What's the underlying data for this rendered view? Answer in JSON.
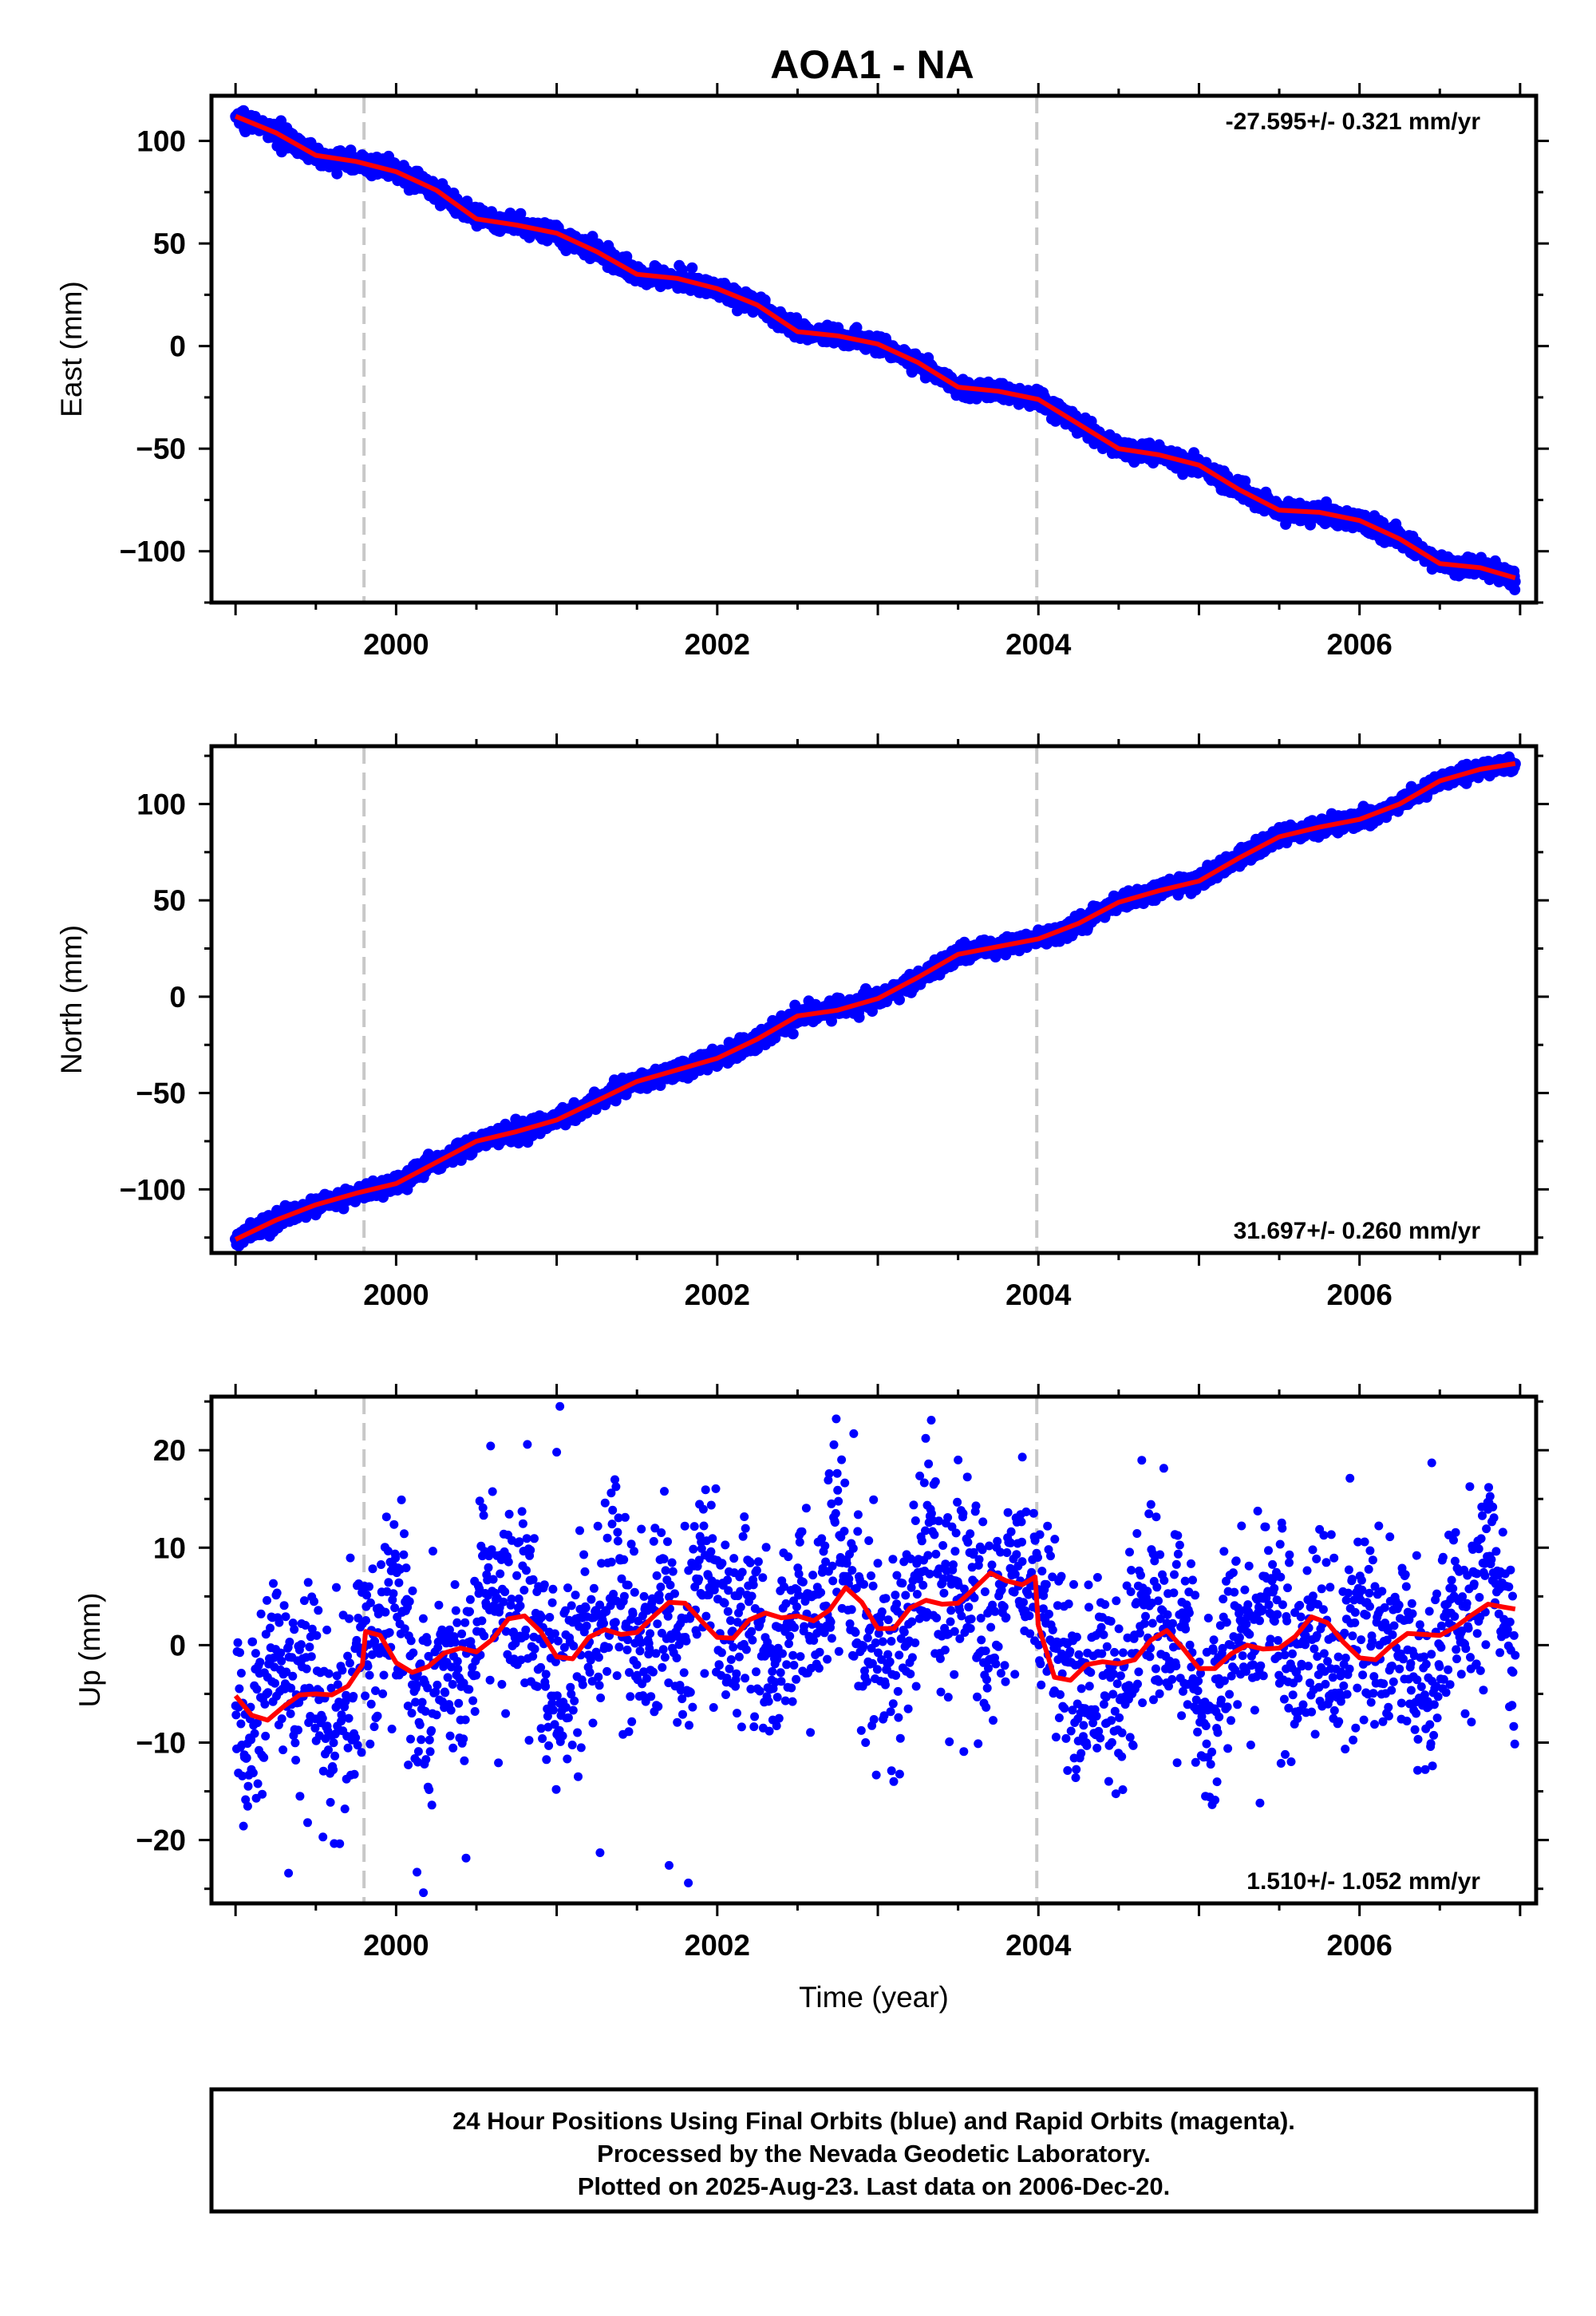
{
  "title": "AOA1 - NA",
  "footer": {
    "lines": [
      "24 Hour Positions Using Final Orbits (blue) and Rapid Orbits (magenta).",
      "Processed by the Nevada Geodetic Laboratory.",
      "Plotted on 2025-Aug-23. Last data on 2006-Dec-20."
    ]
  },
  "colors": {
    "points": "#0000ff",
    "fit": "#ff0000",
    "event_lines": "#c8c8c8",
    "frame": "#000000"
  },
  "chart_data": [
    {
      "type": "scatter",
      "component": "East",
      "ylabel": "East (mm)",
      "xlabel": "",
      "xlim": [
        1998.85,
        2007.1
      ],
      "ylim": [
        -125,
        122
      ],
      "x_ticks": [
        2000,
        2002,
        2004,
        2006
      ],
      "x_tick_labels": [
        "2000",
        "2002",
        "2004",
        "2006"
      ],
      "y_ticks": [
        100,
        50,
        0,
        -50,
        -100
      ],
      "y_tick_labels": [
        "100",
        "50",
        "0",
        "−50",
        "−100"
      ],
      "rate_label": "-27.595+/- 0.321 mm/yr",
      "rate_position": "top-right",
      "event_lines_x": [
        1999.8,
        2003.99
      ],
      "data_span": [
        1999.0,
        2006.97
      ],
      "fit_line": {
        "x": [
          1999.0,
          1999.25,
          1999.5,
          1999.75,
          2000.0,
          2000.25,
          2000.5,
          2000.75,
          2001.0,
          2001.25,
          2001.5,
          2001.75,
          2002.0,
          2002.25,
          2002.5,
          2002.75,
          2003.0,
          2003.25,
          2003.5,
          2003.75,
          2004.0,
          2004.25,
          2004.5,
          2004.75,
          2005.0,
          2005.25,
          2005.5,
          2005.75,
          2006.0,
          2006.25,
          2006.5,
          2006.75,
          2006.97
        ],
        "y": [
          112,
          104,
          93,
          90,
          85,
          76,
          62,
          59,
          55,
          46,
          35,
          33,
          28,
          20,
          7,
          5,
          1,
          -8,
          -20,
          -22,
          -26,
          -38,
          -50,
          -53,
          -58,
          -70,
          -80,
          -81,
          -85,
          -94,
          -106,
          -108,
          -113
        ]
      },
      "scatter_noise_mm": 2.2
    },
    {
      "type": "scatter",
      "component": "North",
      "ylabel": "North (mm)",
      "xlabel": "",
      "xlim": [
        1998.85,
        2007.1
      ],
      "ylim": [
        -133,
        130
      ],
      "x_ticks": [
        2000,
        2002,
        2004,
        2006
      ],
      "x_tick_labels": [
        "2000",
        "2002",
        "2004",
        "2006"
      ],
      "y_ticks": [
        100,
        50,
        0,
        -50,
        -100
      ],
      "y_tick_labels": [
        "100",
        "50",
        "0",
        "−50",
        "−100"
      ],
      "rate_label": "31.697+/- 0.260 mm/yr",
      "rate_position": "bottom-right",
      "event_lines_x": [
        1999.8,
        2003.99
      ],
      "data_span": [
        1999.0,
        2006.97
      ],
      "fit_line": {
        "x": [
          1999.0,
          1999.25,
          1999.5,
          1999.75,
          2000.0,
          2000.25,
          2000.5,
          2000.75,
          2001.0,
          2001.25,
          2001.5,
          2001.75,
          2002.0,
          2002.25,
          2002.5,
          2002.75,
          2003.0,
          2003.25,
          2003.5,
          2003.75,
          2004.0,
          2004.25,
          2004.5,
          2004.75,
          2005.0,
          2005.25,
          2005.5,
          2005.75,
          2006.0,
          2006.25,
          2006.5,
          2006.75,
          2006.97
        ],
        "y": [
          -126,
          -116,
          -108,
          -102,
          -97,
          -86,
          -75,
          -70,
          -64,
          -54,
          -44,
          -38,
          -32,
          -22,
          -10,
          -7,
          -1,
          10,
          22,
          26,
          30,
          38,
          49,
          55,
          60,
          72,
          83,
          88,
          92,
          100,
          112,
          118,
          121
        ]
      },
      "scatter_noise_mm": 2.2
    },
    {
      "type": "scatter",
      "component": "Up",
      "ylabel": "Up (mm)",
      "xlabel": "Time (year)",
      "xlim": [
        1998.85,
        2007.1
      ],
      "ylim": [
        -26.5,
        25.5
      ],
      "x_ticks": [
        2000,
        2002,
        2004,
        2006
      ],
      "x_tick_labels": [
        "2000",
        "2002",
        "2004",
        "2006"
      ],
      "y_ticks": [
        20,
        10,
        0,
        -10,
        -20
      ],
      "y_tick_labels": [
        "20",
        "10",
        "0",
        "−10",
        "−20"
      ],
      "rate_label": "1.510+/- 1.052 mm/yr",
      "rate_position": "bottom-right",
      "event_lines_x": [
        1999.8,
        2003.99
      ],
      "data_span": [
        1999.0,
        2006.97
      ],
      "fit_line": {
        "x": [
          1999.0,
          1999.1,
          1999.2,
          1999.3,
          1999.4,
          1999.5,
          1999.6,
          1999.7,
          1999.79,
          1999.81,
          1999.9,
          2000.0,
          2000.1,
          2000.2,
          2000.3,
          2000.4,
          2000.5,
          2000.6,
          2000.7,
          2000.8,
          2000.9,
          2001.0,
          2001.1,
          2001.2,
          2001.3,
          2001.4,
          2001.5,
          2001.6,
          2001.7,
          2001.8,
          2001.9,
          2002.0,
          2002.1,
          2002.2,
          2002.3,
          2002.4,
          2002.5,
          2002.6,
          2002.7,
          2002.8,
          2002.9,
          2003.0,
          2003.1,
          2003.2,
          2003.3,
          2003.4,
          2003.5,
          2003.6,
          2003.7,
          2003.8,
          2003.9,
          2003.98,
          2004.0,
          2004.1,
          2004.2,
          2004.3,
          2004.4,
          2004.5,
          2004.6,
          2004.7,
          2004.8,
          2004.9,
          2005.0,
          2005.1,
          2005.2,
          2005.3,
          2005.4,
          2005.5,
          2005.6,
          2005.7,
          2005.8,
          2005.9,
          2006.0,
          2006.1,
          2006.2,
          2006.3,
          2006.4,
          2006.5,
          2006.6,
          2006.7,
          2006.8,
          2006.9,
          2006.97
        ],
        "y": [
          -5.2,
          -7.2,
          -7.7,
          -6.3,
          -5.1,
          -5.0,
          -5.1,
          -4.2,
          -2.0,
          1.4,
          1.0,
          -1.8,
          -2.8,
          -2.2,
          -0.8,
          -0.3,
          -0.7,
          0.6,
          2.7,
          3.0,
          1.4,
          -1.2,
          -1.4,
          0.8,
          1.6,
          1.1,
          1.3,
          2.9,
          4.4,
          4.3,
          2.5,
          0.8,
          0.7,
          2.6,
          3.3,
          2.8,
          3.0,
          2.5,
          3.6,
          5.9,
          4.4,
          1.7,
          1.7,
          3.8,
          4.6,
          4.2,
          4.3,
          5.8,
          7.4,
          6.6,
          6.2,
          7.0,
          2.0,
          -3.3,
          -3.6,
          -2.0,
          -1.7,
          -1.9,
          -1.5,
          0.5,
          1.5,
          -0.3,
          -2.4,
          -2.4,
          -0.9,
          0.0,
          -0.4,
          -0.3,
          0.9,
          2.9,
          2.3,
          0.3,
          -1.3,
          -1.5,
          0.0,
          1.2,
          1.1,
          1.0,
          1.9,
          3.1,
          4.2,
          3.9,
          3.7
        ]
      },
      "scatter_noise_mm": 5.0,
      "scatter_outliers": [
        {
          "x": 2001.02,
          "y": 24.5
        },
        {
          "x": 2001.0,
          "y": 19.8
        },
        {
          "x": 2003.5,
          "y": 19.0
        },
        {
          "x": 2002.85,
          "y": 21.7
        },
        {
          "x": 2006.45,
          "y": 18.7
        },
        {
          "x": 2003.9,
          "y": 19.3
        },
        {
          "x": 2000.17,
          "y": -25.4
        },
        {
          "x": 2001.82,
          "y": -24.4
        },
        {
          "x": 1999.33,
          "y": -23.4
        },
        {
          "x": 2001.7,
          "y": -22.6
        },
        {
          "x": 2001.27,
          "y": -21.3
        },
        {
          "x": 2000.13,
          "y": -23.3
        },
        {
          "x": 2005.38,
          "y": -16.2
        },
        {
          "x": 2005.1,
          "y": -15.9
        }
      ]
    }
  ]
}
